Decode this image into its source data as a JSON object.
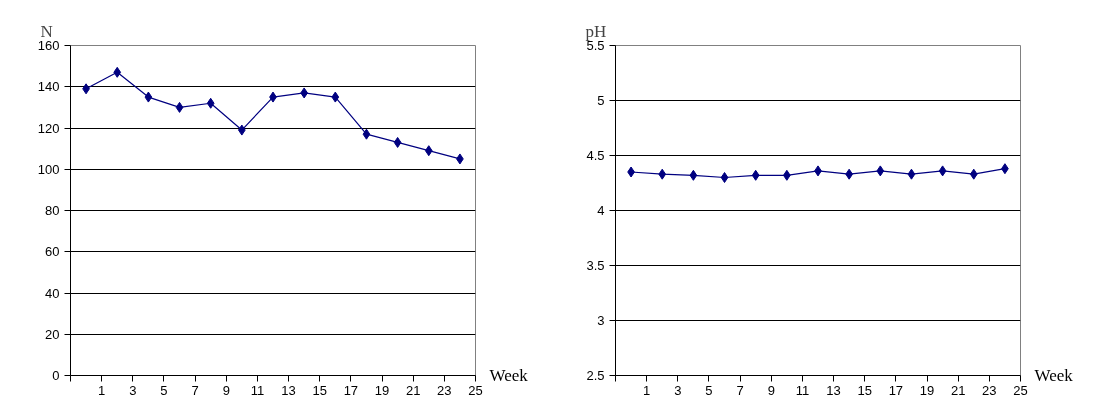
{
  "chart_data": [
    {
      "type": "line",
      "ylabel": "N",
      "xlabel": "Week",
      "x": [
        0,
        2,
        4,
        6,
        8,
        10,
        12,
        14,
        16,
        18,
        20,
        22,
        24
      ],
      "series": [
        {
          "color": "#000080",
          "values": [
            139,
            147,
            135,
            130,
            132,
            119,
            135,
            137,
            135,
            117,
            113,
            109,
            105
          ]
        }
      ],
      "xlim": [
        -1,
        25
      ],
      "xticks": [
        {
          "value": -1,
          "label": null
        },
        1,
        3,
        5,
        7,
        9,
        11,
        13,
        15,
        17,
        19,
        21,
        23,
        25
      ],
      "ylim": [
        0,
        160
      ],
      "yticks": [
        0,
        20,
        40,
        60,
        80,
        100,
        120,
        140,
        160
      ],
      "grid": "y",
      "marker": "diamond",
      "line_style": "solid"
    },
    {
      "type": "line",
      "ylabel": "pH",
      "xlabel": "Week",
      "x": [
        0,
        2,
        4,
        6,
        8,
        10,
        12,
        14,
        16,
        18,
        20,
        22,
        24
      ],
      "series": [
        {
          "color": "#000080",
          "values": [
            4.35,
            4.33,
            4.32,
            4.3,
            4.32,
            4.32,
            4.36,
            4.33,
            4.36,
            4.33,
            4.36,
            4.33,
            4.38
          ]
        }
      ],
      "xlim": [
        -1,
        25
      ],
      "xticks": [
        {
          "value": -1,
          "label": null
        },
        1,
        3,
        5,
        7,
        9,
        11,
        13,
        15,
        17,
        19,
        21,
        23,
        25
      ],
      "ylim": [
        2.5,
        5.5
      ],
      "yticks": [
        2.5,
        3,
        3.5,
        4,
        4.5,
        5,
        5.5
      ],
      "grid": "y",
      "marker": "diamond",
      "line_style": "solid"
    }
  ]
}
